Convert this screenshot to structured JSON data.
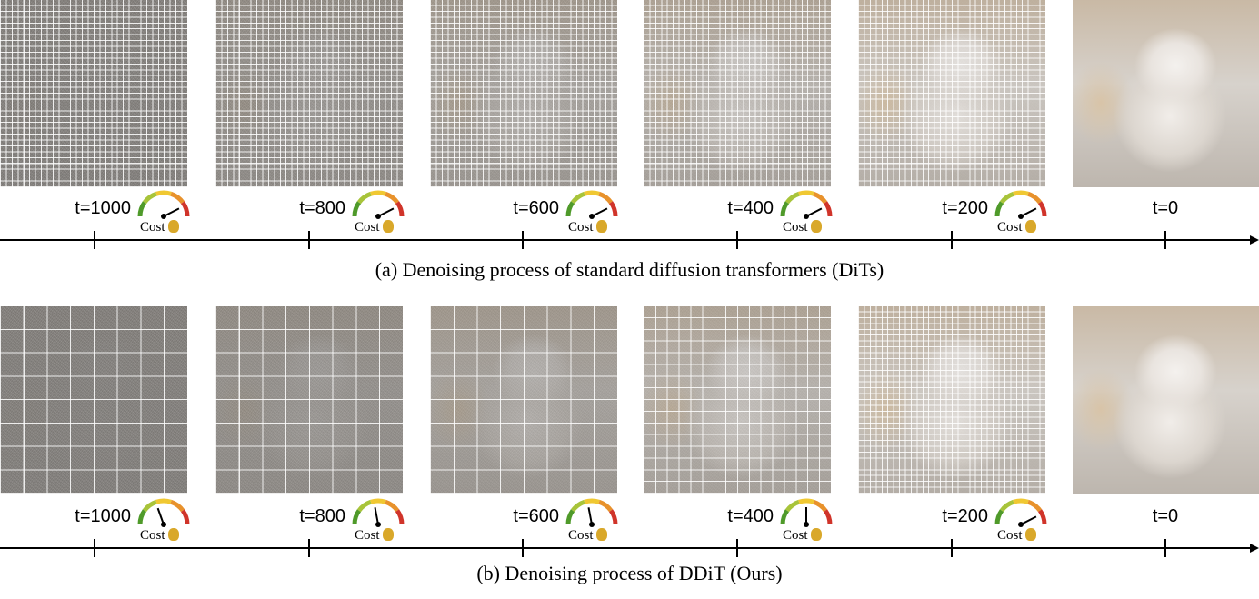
{
  "rows": [
    {
      "caption": "(a) Denoising process of standard diffusion transformers (DiTs)",
      "steps": [
        {
          "t": "t=1000",
          "grid": 32,
          "progress": 0.0,
          "cost": 0.85,
          "cost_label": "Cost"
        },
        {
          "t": "t=800",
          "grid": 32,
          "progress": 0.2,
          "cost": 0.85,
          "cost_label": "Cost"
        },
        {
          "t": "t=600",
          "grid": 32,
          "progress": 0.4,
          "cost": 0.85,
          "cost_label": "Cost"
        },
        {
          "t": "t=400",
          "grid": 32,
          "progress": 0.6,
          "cost": 0.85,
          "cost_label": "Cost"
        },
        {
          "t": "t=200",
          "grid": 32,
          "progress": 0.85,
          "cost": 0.85,
          "cost_label": "Cost"
        },
        {
          "t": "t=0",
          "grid": 0,
          "progress": 1.0,
          "cost": null,
          "cost_label": ""
        }
      ]
    },
    {
      "caption": "(b) Denoising process of DDiT (Ours)",
      "steps": [
        {
          "t": "t=1000",
          "grid": 8,
          "progress": 0.0,
          "cost": 0.2,
          "cost_label": "Cost"
        },
        {
          "t": "t=800",
          "grid": 8,
          "progress": 0.2,
          "cost": 0.25,
          "cost_label": "Cost"
        },
        {
          "t": "t=600",
          "grid": 8,
          "progress": 0.4,
          "cost": 0.25,
          "cost_label": "Cost"
        },
        {
          "t": "t=400",
          "grid": 16,
          "progress": 0.6,
          "cost": 0.5,
          "cost_label": "Cost"
        },
        {
          "t": "t=200",
          "grid": 32,
          "progress": 0.85,
          "cost": 0.85,
          "cost_label": "Cost"
        },
        {
          "t": "t=0",
          "grid": 0,
          "progress": 1.0,
          "cost": null,
          "cost_label": ""
        }
      ]
    }
  ],
  "colors": {
    "gauge": [
      "#4f9a2a",
      "#a8c43a",
      "#f0c832",
      "#e8922c",
      "#d0342a"
    ],
    "grid_line": "#ffffff",
    "bag": "#d9a82a"
  },
  "icons": {
    "cost": "money-bag-icon",
    "gauge": "speedometer-icon"
  }
}
